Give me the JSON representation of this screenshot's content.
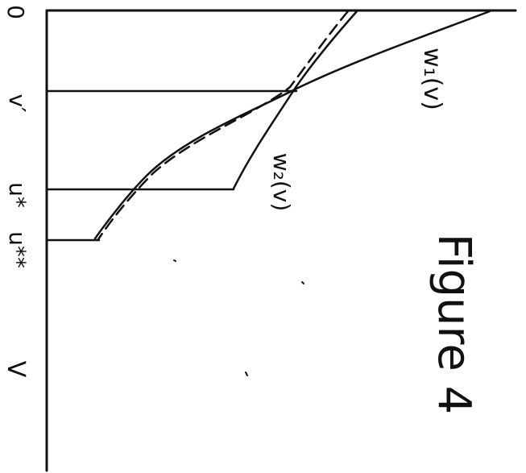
{
  "figure": {
    "caption": "Figure 4",
    "axis": {
      "origin_label": "0",
      "end_label": "V",
      "tick_labels": [
        "v′",
        "u*",
        "u**"
      ]
    },
    "curves": [
      {
        "name": "w1",
        "label": "w₁(v)"
      },
      {
        "name": "w2",
        "label": "w₂(v)"
      }
    ],
    "colors": {
      "ink": "#111111",
      "background": "#ffffff"
    }
  }
}
